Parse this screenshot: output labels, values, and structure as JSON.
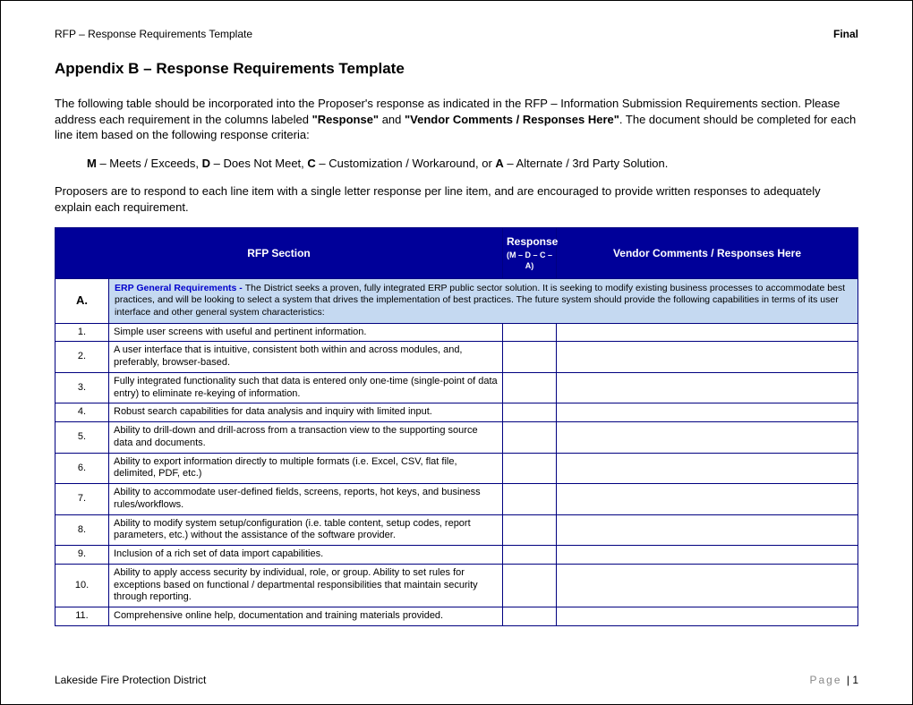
{
  "header": {
    "left": "RFP – Response Requirements Template",
    "right": "Final"
  },
  "title": "Appendix B – Response Requirements Template",
  "intro": {
    "para1_a": "The following table should be incorporated into the Proposer's response as indicated in the RFP – Information Submission Requirements section.  Please address each requirement in the columns labeled ",
    "para1_b": "\"Response\"",
    "para1_c": " and ",
    "para1_d": "\"Vendor Comments / Responses Here\"",
    "para1_e": ". The document should be completed for each line item based on the following response criteria:",
    "crit_m_b": "M",
    "crit_m_t": " – Meets / Exceeds, ",
    "crit_d_b": "D",
    "crit_d_t": " – Does Not Meet, ",
    "crit_c_b": "C",
    "crit_c_t": " – Customization / Workaround, or ",
    "crit_a_b": "A",
    "crit_a_t": " – Alternate / 3rd Party Solution.",
    "para3": "Proposers are to respond to each line item with a single letter response per line item, and are encouraged to provide written responses to adequately explain each requirement."
  },
  "table": {
    "headers": {
      "section": "RFP Section",
      "response_top": "Response",
      "response_sub": "(M – D – C – A)",
      "vendor": "Vendor Comments / Responses Here"
    },
    "section": {
      "label": "A.",
      "title": "ERP General Requirements - ",
      "desc": "The District seeks a proven, fully integrated ERP public sector solution.  It is seeking to modify existing business processes to accommodate best practices, and will be looking to select a system that drives the implementation of best practices.  The future system should provide the following capabilities in terms of its user interface and other general system characteristics:"
    },
    "rows": [
      {
        "num": "1.",
        "desc": "Simple user screens with useful and pertinent information."
      },
      {
        "num": "2.",
        "desc": "A user interface that is intuitive, consistent both within and across modules, and, preferably, browser-based."
      },
      {
        "num": "3.",
        "desc": "Fully integrated functionality such that data is entered only one-time (single-point of data entry) to eliminate re-keying of information."
      },
      {
        "num": "4.",
        "desc": "Robust search capabilities for data analysis and inquiry with limited input."
      },
      {
        "num": "5.",
        "desc": "Ability to drill-down and drill-across from a transaction view to the supporting source data and documents."
      },
      {
        "num": "6.",
        "desc": "Ability to export information directly to multiple formats (i.e. Excel, CSV, flat file, delimited, PDF, etc.)"
      },
      {
        "num": "7.",
        "desc": "Ability to accommodate user-defined fields, screens, reports, hot keys, and business rules/workflows."
      },
      {
        "num": "8.",
        "desc": "Ability to modify system setup/configuration (i.e. table content, setup codes, report parameters, etc.) without the assistance of the software provider."
      },
      {
        "num": "9.",
        "desc": "Inclusion of a rich set of data import capabilities."
      },
      {
        "num": "10.",
        "desc": "Ability to apply access security by individual, role, or group.  Ability to set rules for exceptions based on functional / departmental responsibilities that maintain security through reporting."
      },
      {
        "num": "11.",
        "desc": "Comprehensive online help, documentation and training materials provided."
      }
    ]
  },
  "footer": {
    "left": "Lakeside Fire Protection District",
    "page_label": "Page ",
    "page_sep": "| ",
    "page_num": "1"
  }
}
